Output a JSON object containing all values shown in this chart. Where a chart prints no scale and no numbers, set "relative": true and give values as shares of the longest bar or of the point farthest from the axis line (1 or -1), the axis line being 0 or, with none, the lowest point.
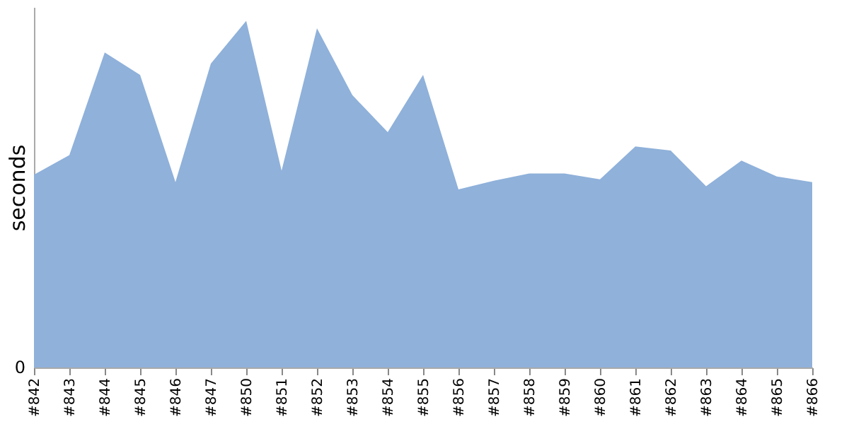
{
  "chart_data": {
    "type": "area",
    "ylabel": "seconds",
    "relative": true,
    "grid": false,
    "categories": [
      "#842",
      "#843",
      "#844",
      "#845",
      "#846",
      "#847",
      "#850",
      "#851",
      "#852",
      "#853",
      "#854",
      "#855",
      "#856",
      "#857",
      "#858",
      "#859",
      "#860",
      "#861",
      "#862",
      "#863",
      "#864",
      "#865",
      "#866"
    ],
    "series": [
      {
        "color": "#8fb1da",
        "values": [
          0.556,
          0.613,
          0.909,
          0.844,
          0.535,
          0.877,
          1,
          0.568,
          0.979,
          0.786,
          0.679,
          0.844,
          0.514,
          0.539,
          0.56,
          0.56,
          0.543,
          0.638,
          0.626,
          0.523,
          0.597,
          0.551,
          0.535
        ]
      }
    ],
    "annotations": [
      "0"
    ]
  }
}
